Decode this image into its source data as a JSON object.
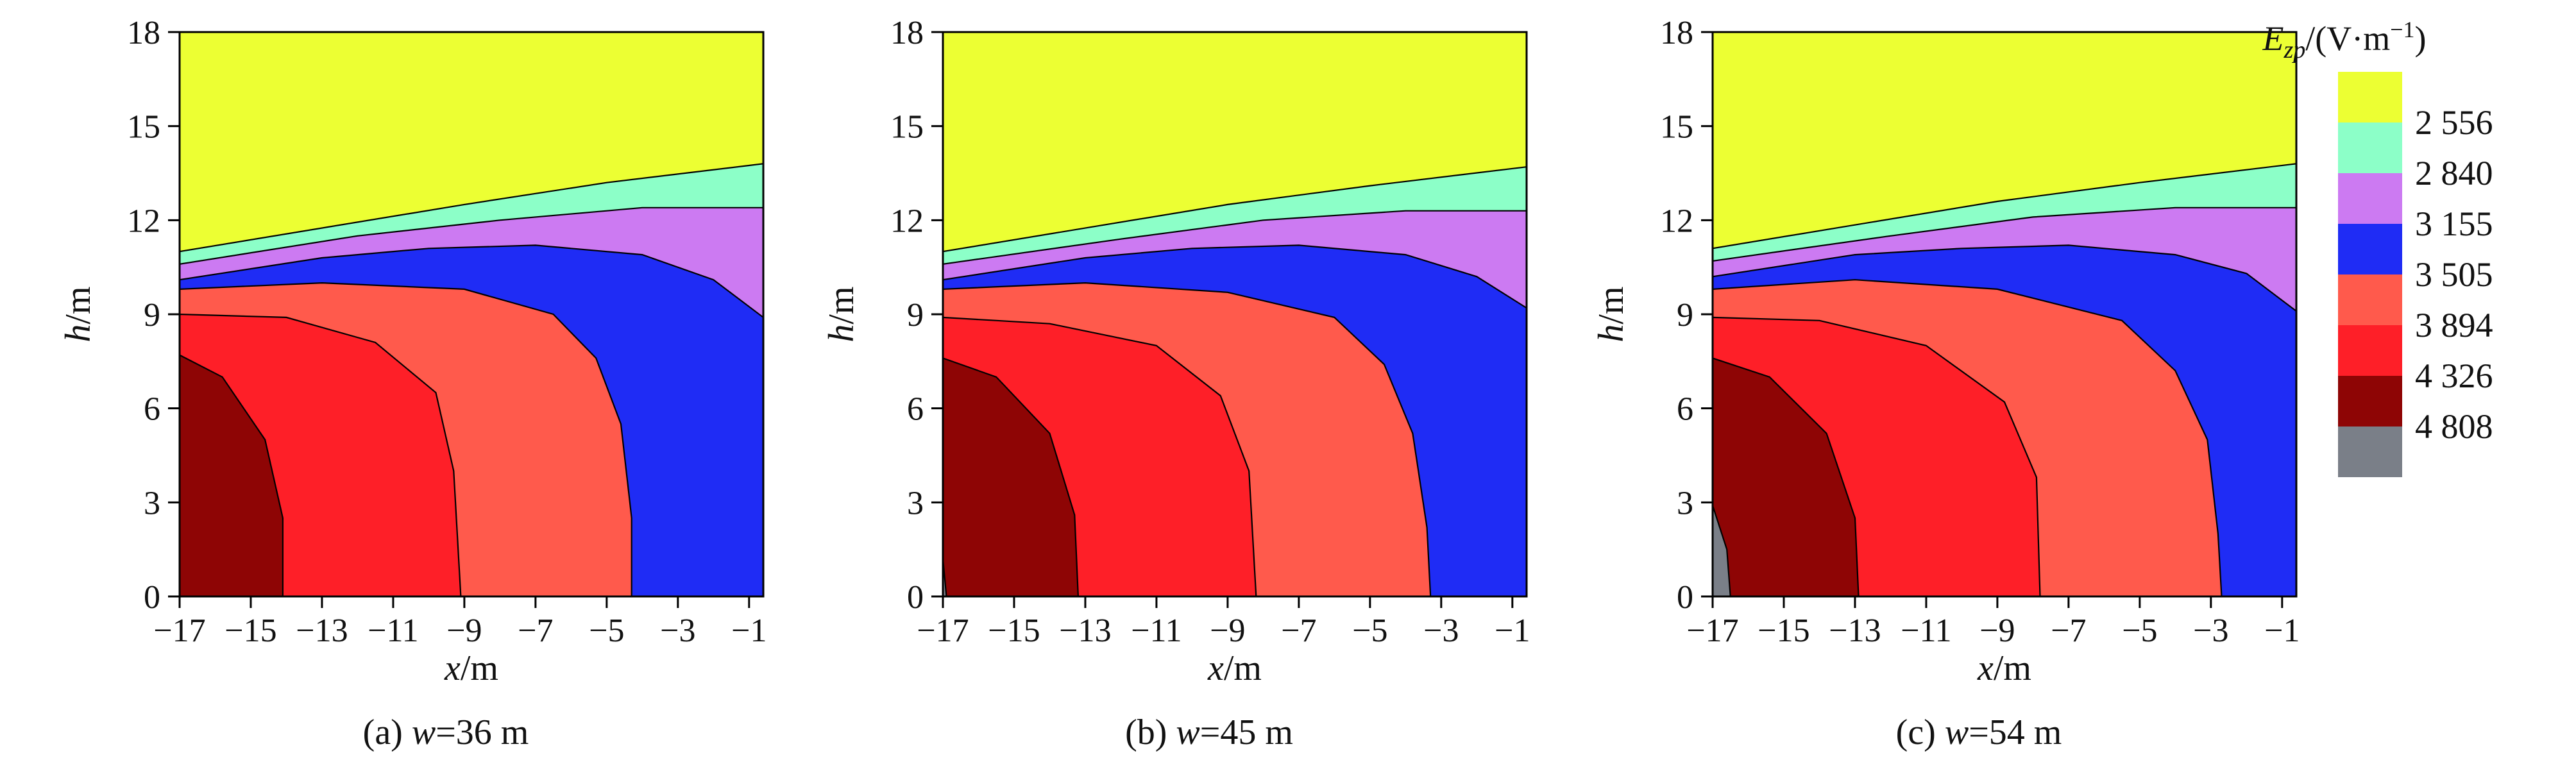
{
  "colors": {
    "yellow": "#ECFF33",
    "aqua": "#8CFFC8",
    "violet": "#CC7AF2",
    "blue": "#1F2CF5",
    "salmon": "#FF5A4C",
    "red": "#FE1F28",
    "darkred": "#8E0505",
    "gray": "#7A7F88"
  },
  "chart_data": [
    {
      "type": "contour",
      "caption_prefix": "(a) ",
      "caption_var": "w",
      "caption_rest": "=36 m",
      "xlabel_var": "x",
      "xlabel_unit": "/m",
      "ylabel_var": "h",
      "ylabel_unit": "/m",
      "xlim": [
        -17,
        -0.6
      ],
      "ylim": [
        0,
        18
      ],
      "xticks": [
        "−17",
        "−15",
        "−13",
        "−11",
        "−9",
        "−7",
        "−5",
        "−3",
        "−1"
      ],
      "yticks": [
        "0",
        "3",
        "6",
        "9",
        "12",
        "15",
        "18"
      ],
      "boundaries": {
        "aqua_top": [
          [
            -17,
            11.0
          ],
          [
            -9,
            12.5
          ],
          [
            -5,
            13.2
          ],
          [
            -0.6,
            13.8
          ]
        ],
        "violet_top": [
          [
            -17,
            10.6
          ],
          [
            -12,
            11.5
          ],
          [
            -8,
            12.0
          ],
          [
            -4,
            12.4
          ],
          [
            -0.6,
            12.4
          ]
        ],
        "blue_top": [
          [
            -17,
            10.1
          ],
          [
            -13,
            10.8
          ],
          [
            -10,
            11.1
          ],
          [
            -7,
            11.2
          ],
          [
            -4,
            10.9
          ],
          [
            -2,
            10.1
          ],
          [
            -0.6,
            8.9
          ]
        ],
        "salmon_outer": [
          [
            -17,
            9.8
          ],
          [
            -13,
            10.0
          ],
          [
            -9,
            9.8
          ],
          [
            -6.5,
            9.0
          ],
          [
            -5.3,
            7.6
          ],
          [
            -4.6,
            5.5
          ],
          [
            -4.3,
            2.5
          ],
          [
            -4.3,
            0
          ]
        ],
        "red_outer": [
          [
            -17,
            9.0
          ],
          [
            -14,
            8.9
          ],
          [
            -11.5,
            8.1
          ],
          [
            -9.8,
            6.5
          ],
          [
            -9.3,
            4.0
          ],
          [
            -9.1,
            0
          ]
        ],
        "darkred_outer": [
          [
            -17,
            7.7
          ],
          [
            -15.8,
            7.0
          ],
          [
            -14.6,
            5.0
          ],
          [
            -14.1,
            2.5
          ],
          [
            -14.1,
            0
          ]
        ]
      }
    },
    {
      "type": "contour",
      "caption_prefix": "(b) ",
      "caption_var": "w",
      "caption_rest": "=45 m",
      "xlabel_var": "x",
      "xlabel_unit": "/m",
      "ylabel_var": "h",
      "ylabel_unit": "/m",
      "xlim": [
        -17,
        -0.6
      ],
      "ylim": [
        0,
        18
      ],
      "xticks": [
        "−17",
        "−15",
        "−13",
        "−11",
        "−9",
        "−7",
        "−5",
        "−3",
        "−1"
      ],
      "yticks": [
        "0",
        "3",
        "6",
        "9",
        "12",
        "15",
        "18"
      ],
      "boundaries": {
        "aqua_top": [
          [
            -17,
            11.0
          ],
          [
            -9,
            12.5
          ],
          [
            -5,
            13.1
          ],
          [
            -0.6,
            13.7
          ]
        ],
        "violet_top": [
          [
            -17,
            10.6
          ],
          [
            -12,
            11.4
          ],
          [
            -8,
            12.0
          ],
          [
            -4,
            12.3
          ],
          [
            -0.6,
            12.3
          ]
        ],
        "blue_top": [
          [
            -17,
            10.1
          ],
          [
            -13,
            10.8
          ],
          [
            -10,
            11.1
          ],
          [
            -7,
            11.2
          ],
          [
            -4,
            10.9
          ],
          [
            -2,
            10.2
          ],
          [
            -0.6,
            9.2
          ]
        ],
        "salmon_outer": [
          [
            -17,
            9.8
          ],
          [
            -13,
            10.0
          ],
          [
            -9,
            9.7
          ],
          [
            -6,
            8.9
          ],
          [
            -4.6,
            7.4
          ],
          [
            -3.8,
            5.2
          ],
          [
            -3.4,
            2.2
          ],
          [
            -3.3,
            0
          ]
        ],
        "red_outer": [
          [
            -17,
            8.9
          ],
          [
            -14,
            8.7
          ],
          [
            -11,
            8.0
          ],
          [
            -9.2,
            6.4
          ],
          [
            -8.4,
            4.0
          ],
          [
            -8.2,
            0
          ]
        ],
        "darkred_outer": [
          [
            -17,
            7.6
          ],
          [
            -15.5,
            7.0
          ],
          [
            -14,
            5.2
          ],
          [
            -13.3,
            2.6
          ],
          [
            -13.2,
            0
          ]
        ],
        "gray_outer": [
          [
            -17,
            1.2
          ],
          [
            -16.9,
            0
          ]
        ]
      }
    },
    {
      "type": "contour",
      "caption_prefix": "(c) ",
      "caption_var": "w",
      "caption_rest": "=54 m",
      "xlabel_var": "x",
      "xlabel_unit": "/m",
      "ylabel_var": "h",
      "ylabel_unit": "/m",
      "xlim": [
        -17,
        -0.6
      ],
      "ylim": [
        0,
        18
      ],
      "xticks": [
        "−17",
        "−15",
        "−13",
        "−11",
        "−9",
        "−7",
        "−5",
        "−3",
        "−1"
      ],
      "yticks": [
        "0",
        "3",
        "6",
        "9",
        "12",
        "15",
        "18"
      ],
      "boundaries": {
        "aqua_top": [
          [
            -17,
            11.1
          ],
          [
            -9,
            12.6
          ],
          [
            -5,
            13.2
          ],
          [
            -0.6,
            13.8
          ]
        ],
        "violet_top": [
          [
            -17,
            10.7
          ],
          [
            -12,
            11.5
          ],
          [
            -8,
            12.1
          ],
          [
            -4,
            12.4
          ],
          [
            -0.6,
            12.4
          ]
        ],
        "blue_top": [
          [
            -17,
            10.2
          ],
          [
            -13,
            10.9
          ],
          [
            -10,
            11.1
          ],
          [
            -7,
            11.2
          ],
          [
            -4,
            10.9
          ],
          [
            -2,
            10.3
          ],
          [
            -0.6,
            9.1
          ]
        ],
        "salmon_outer": [
          [
            -17,
            9.8
          ],
          [
            -13,
            10.1
          ],
          [
            -9,
            9.8
          ],
          [
            -5.5,
            8.8
          ],
          [
            -4,
            7.2
          ],
          [
            -3.1,
            5.0
          ],
          [
            -2.8,
            2.0
          ],
          [
            -2.7,
            0
          ]
        ],
        "red_outer": [
          [
            -17,
            8.9
          ],
          [
            -14,
            8.8
          ],
          [
            -11,
            8.0
          ],
          [
            -8.8,
            6.2
          ],
          [
            -7.9,
            3.8
          ],
          [
            -7.8,
            0
          ]
        ],
        "darkred_outer": [
          [
            -17,
            7.6
          ],
          [
            -15.4,
            7.0
          ],
          [
            -13.8,
            5.2
          ],
          [
            -13,
            2.5
          ],
          [
            -12.9,
            0
          ]
        ],
        "gray_outer": [
          [
            -17,
            2.9
          ],
          [
            -16.6,
            1.5
          ],
          [
            -16.5,
            0
          ]
        ]
      }
    }
  ],
  "legend": {
    "title_var": "E",
    "title_sub": "zp",
    "title_unit": "/(V·m",
    "title_exp": "−1",
    "title_close": ")",
    "items": [
      {
        "label": "2 556",
        "color_key": "aqua"
      },
      {
        "label": "2 840",
        "color_key": "violet"
      },
      {
        "label": "3 155",
        "color_key": "blue"
      },
      {
        "label": "3 505",
        "color_key": "salmon"
      },
      {
        "label": "3 894",
        "color_key": "red"
      },
      {
        "label": "4 326",
        "color_key": "darkred"
      },
      {
        "label": "4 808",
        "color_key": "gray"
      }
    ],
    "top_color_key": "yellow"
  }
}
